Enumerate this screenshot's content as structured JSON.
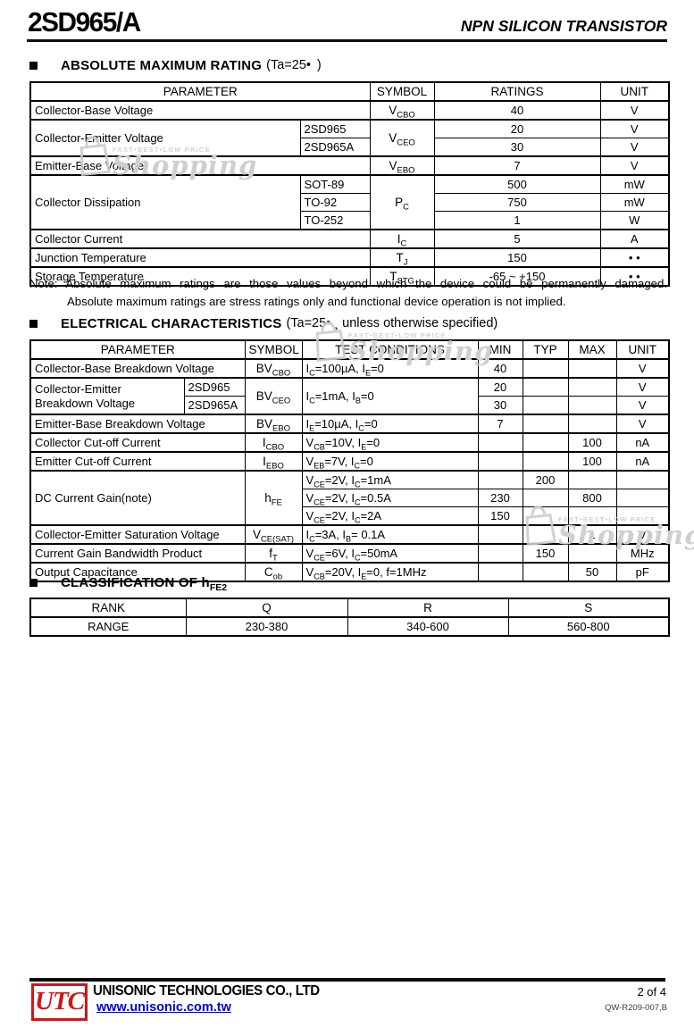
{
  "header": {
    "part": "2SD965/A",
    "doc_type": "NPN SILICON TRANSISTOR"
  },
  "abs": {
    "title": "ABSOLUTE MAXIMUM RATING",
    "cond": "(Ta=25•  )"
  },
  "t1": {
    "h": [
      "PARAMETER",
      "SYMBOL",
      "RATINGS",
      "UNIT"
    ],
    "cbv": {
      "p": "Collector-Base Voltage",
      "s": "V_{CBO}",
      "r": "40",
      "u": "V"
    },
    "cev": {
      "p": "Collector-Emitter Voltage",
      "s": "V_{CEO}",
      "m1": "2SD965",
      "r1": "20",
      "u1": "V",
      "m2": "2SD965A",
      "r2": "30",
      "u2": "V"
    },
    "ebv": {
      "p": "Emitter-Base Voltage",
      "s": "V_{EBO}",
      "r": "7",
      "u": "V"
    },
    "cd": {
      "p": "Collector Dissipation",
      "s": "P_{C}",
      "m1": "SOT-89",
      "r1": "500",
      "u1": "mW",
      "m2": "TO-92",
      "r2": "750",
      "u2": "mW",
      "m3": "TO-252",
      "r3": "1",
      "u3": "W"
    },
    "ic": {
      "p": "Collector Current",
      "s": "I_{C}",
      "r": "5",
      "u": "A"
    },
    "tj": {
      "p": "Junction Temperature",
      "s": "T_{J}",
      "r": "150",
      "u": "• •"
    },
    "tstg": {
      "p": "Storage Temperature",
      "s": "T_{STG}",
      "r": "-65 ~ +150",
      "u": "• •"
    }
  },
  "note": {
    "l1": "Note: Absolute maximum ratings are those values beyond which the device could be permanently damaged.",
    "l2": "Absolute maximum ratings are stress ratings only and functional device operation is not implied."
  },
  "elec": {
    "title": "ELECTRICAL CHARACTERISTICS",
    "cond": "(Ta=25• ¸ unless otherwise specified)"
  },
  "t2": {
    "h": [
      "PARAMETER",
      "SYMBOL",
      "TEST CONDITIONS",
      "MIN",
      "TYP",
      "MAX",
      "UNIT"
    ],
    "bvcbo": {
      "p": "Collector-Base Breakdown Voltage",
      "s": "BV_{CBO}",
      "c": "I_{C}=100µA, I_{E}=0",
      "min": "40",
      "u": "V"
    },
    "bvceo": {
      "p1": "Collector-Emitter",
      "p2": "Breakdown Voltage",
      "s": "BV_{CEO}",
      "c": "I_{C}=1mA, I_{B}=0",
      "m1": "2SD965",
      "min1": "20",
      "u1": "V",
      "m2": "2SD965A",
      "min2": "30",
      "u2": "V"
    },
    "bvebo": {
      "p": "Emitter-Base Breakdown Voltage",
      "s": "BV_{EBO}",
      "c": "I_{E}=10µA, I_{C}=0",
      "min": "7",
      "u": "V"
    },
    "icbo": {
      "p": "Collector Cut-off Current",
      "s": "I_{CBO}",
      "c": "V_{CB}=10V, I_{E}=0",
      "max": "100",
      "u": "nA"
    },
    "iebo": {
      "p": "Emitter Cut-off Current",
      "s": "I_{EBO}",
      "c": "V_{EB}=7V, I_{C}=0",
      "max": "100",
      "u": "nA"
    },
    "hfe": {
      "p": "DC Current Gain(note)",
      "s": "h_{FE}",
      "c1": "V_{CE}=2V, I_{C}=1mA",
      "typ1": "200",
      "c2": "V_{CE}=2V, I_{C}=0.5A",
      "min2": "230",
      "max2": "800",
      "c3": "V_{CE}=2V, I_{C}=2A",
      "min3": "150"
    },
    "vcesat": {
      "p": "Collector-Emitter Saturation Voltage",
      "s": "V_{CE(SAT)}",
      "c": "I_{C}=3A, I_{B}= 0.1A",
      "max": "1",
      "u": "V"
    },
    "ft": {
      "p": "Current Gain Bandwidth Product",
      "s": "f_{T}",
      "c": "V_{CE}=6V, I_{C}=50mA",
      "typ": "150",
      "u": "MHz"
    },
    "cob": {
      "p": "Output Capacitance",
      "s": "C_{ob}",
      "c": "V_{CB}=20V, I_{E}=0, f=1MHz",
      "max": "50",
      "u": "pF"
    }
  },
  "cls": {
    "title": "CLASSIFICATION OF h_{FE2}",
    "rank_label": "RANK",
    "range_label": "RANGE",
    "ranks": [
      "Q",
      "R",
      "S"
    ],
    "ranges": [
      "230-380",
      "340-600",
      "560-800"
    ]
  },
  "footer": {
    "logo": "UTC",
    "company": "UNISONIC TECHNOLOGIES CO., LTD",
    "url": "www.unisonic.com.tw",
    "page": "2 of 4",
    "doc_code": "QW-R209-007,B",
    "logo_red": "#cf1717",
    "link_blue": "#0000dd"
  },
  "watermark": {
    "tagline": "FAST•BEST•LOW PRICE",
    "label": "Shopping"
  }
}
